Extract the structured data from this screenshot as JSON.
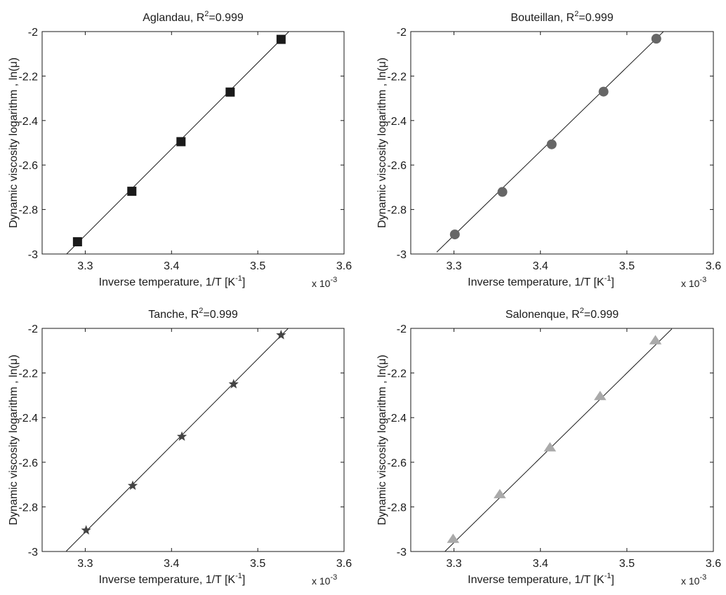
{
  "chart_data": [
    {
      "type": "scatter",
      "title_main": "Aglandau, R",
      "title_sup": "2",
      "title_tail": "=0.999",
      "xlabel_main": "Inverse temperature, 1/T [K",
      "xlabel_sup": "-1",
      "xlabel_tail": "]",
      "x_multiplier_base": "x 10",
      "x_multiplier_exp": "-3",
      "ylabel": "Dynamic viscosity logarithm , ln(μ)",
      "xlim": [
        3.25,
        3.6
      ],
      "ylim": [
        -3,
        -2
      ],
      "xticks": [
        3.3,
        3.4,
        3.5,
        3.6
      ],
      "xtick_labels": [
        "3.3",
        "3.4",
        "3.5",
        "3.6"
      ],
      "yticks": [
        -3,
        -2.8,
        -2.6,
        -2.4,
        -2.2,
        -2
      ],
      "ytick_labels": [
        "-3",
        "-2.8",
        "-2.6",
        "-2.4",
        "-2.2",
        "-2"
      ],
      "marker": "square",
      "marker_color": "#1a1a1a",
      "series": [
        {
          "x": [
            3.291,
            3.354,
            3.411,
            3.468,
            3.527
          ],
          "y": [
            -2.945,
            -2.718,
            -2.495,
            -2.272,
            -2.035
          ]
        }
      ],
      "fit_line": {
        "slope": 3.88,
        "intercept": -15.72,
        "x_range": [
          3.278,
          3.545
        ]
      },
      "grid": false
    },
    {
      "type": "scatter",
      "title_main": "Bouteillan, R",
      "title_sup": "2",
      "title_tail": "=0.999",
      "xlabel_main": "Inverse temperature, 1/T [K",
      "xlabel_sup": "-1",
      "xlabel_tail": "]",
      "x_multiplier_base": "x 10",
      "x_multiplier_exp": "-3",
      "ylabel": "Dynamic viscosity logarithm , ln(μ)",
      "xlim": [
        3.25,
        3.6
      ],
      "ylim": [
        -3,
        -2
      ],
      "xticks": [
        3.3,
        3.4,
        3.5,
        3.6
      ],
      "xtick_labels": [
        "3.3",
        "3.4",
        "3.5",
        "3.6"
      ],
      "yticks": [
        -3,
        -2.8,
        -2.6,
        -2.4,
        -2.2,
        -2
      ],
      "ytick_labels": [
        "-3",
        "-2.8",
        "-2.6",
        "-2.4",
        "-2.2",
        "-2"
      ],
      "marker": "circle",
      "marker_color": "#666666",
      "series": [
        {
          "x": [
            3.301,
            3.356,
            3.413,
            3.473,
            3.534
          ],
          "y": [
            -2.912,
            -2.721,
            -2.507,
            -2.27,
            -2.032
          ]
        }
      ],
      "fit_line": {
        "slope": 3.78,
        "intercept": -15.39,
        "x_range": [
          3.28,
          3.552
        ]
      },
      "grid": false
    },
    {
      "type": "scatter",
      "title_main": "Tanche, R",
      "title_sup": "2",
      "title_tail": "=0.999",
      "xlabel_main": "Inverse temperature, 1/T [K",
      "xlabel_sup": "-1",
      "xlabel_tail": "]",
      "x_multiplier_base": "x 10",
      "x_multiplier_exp": "-3",
      "ylabel": "Dynamic viscosity logarithm , ln(μ)",
      "xlim": [
        3.25,
        3.6
      ],
      "ylim": [
        -3,
        -2
      ],
      "xticks": [
        3.3,
        3.4,
        3.5,
        3.6
      ],
      "xtick_labels": [
        "3.3",
        "3.4",
        "3.5",
        "3.6"
      ],
      "yticks": [
        -3,
        -2.8,
        -2.6,
        -2.4,
        -2.2,
        -2
      ],
      "ytick_labels": [
        "-3",
        "-2.8",
        "-2.6",
        "-2.4",
        "-2.2",
        "-2"
      ],
      "marker": "star",
      "marker_color": "#444444",
      "series": [
        {
          "x": [
            3.301,
            3.355,
            3.412,
            3.472,
            3.527
          ],
          "y": [
            -2.905,
            -2.705,
            -2.485,
            -2.25,
            -2.03
          ]
        }
      ],
      "fit_line": {
        "slope": 3.88,
        "intercept": -15.717,
        "x_range": [
          3.278,
          3.545
        ]
      },
      "grid": false
    },
    {
      "type": "scatter",
      "title_main": "Salonenque, R",
      "title_sup": "2",
      "title_tail": "=0.999",
      "xlabel_main": "Inverse temperature, 1/T [K",
      "xlabel_sup": "-1",
      "xlabel_tail": "]",
      "x_multiplier_base": "x 10",
      "x_multiplier_exp": "-3",
      "ylabel": "Dynamic viscosity logarithm , ln(μ)",
      "xlim": [
        3.25,
        3.6
      ],
      "ylim": [
        -3,
        -2
      ],
      "xticks": [
        3.3,
        3.4,
        3.5,
        3.6
      ],
      "xtick_labels": [
        "3.3",
        "3.4",
        "3.5",
        "3.6"
      ],
      "yticks": [
        -3,
        -2.8,
        -2.6,
        -2.4,
        -2.2,
        -2
      ],
      "ytick_labels": [
        "-3",
        "-2.8",
        "-2.6",
        "-2.4",
        "-2.2",
        "-2"
      ],
      "marker": "triangle",
      "marker_color": "#aaaaaa",
      "series": [
        {
          "x": [
            3.299,
            3.353,
            3.411,
            3.469,
            3.533
          ],
          "y": [
            -2.945,
            -2.745,
            -2.535,
            -2.305,
            -2.055
          ]
        }
      ],
      "fit_line": {
        "slope": 3.8,
        "intercept": -15.5,
        "x_range": [
          3.283,
          3.552
        ]
      },
      "grid": false
    }
  ]
}
